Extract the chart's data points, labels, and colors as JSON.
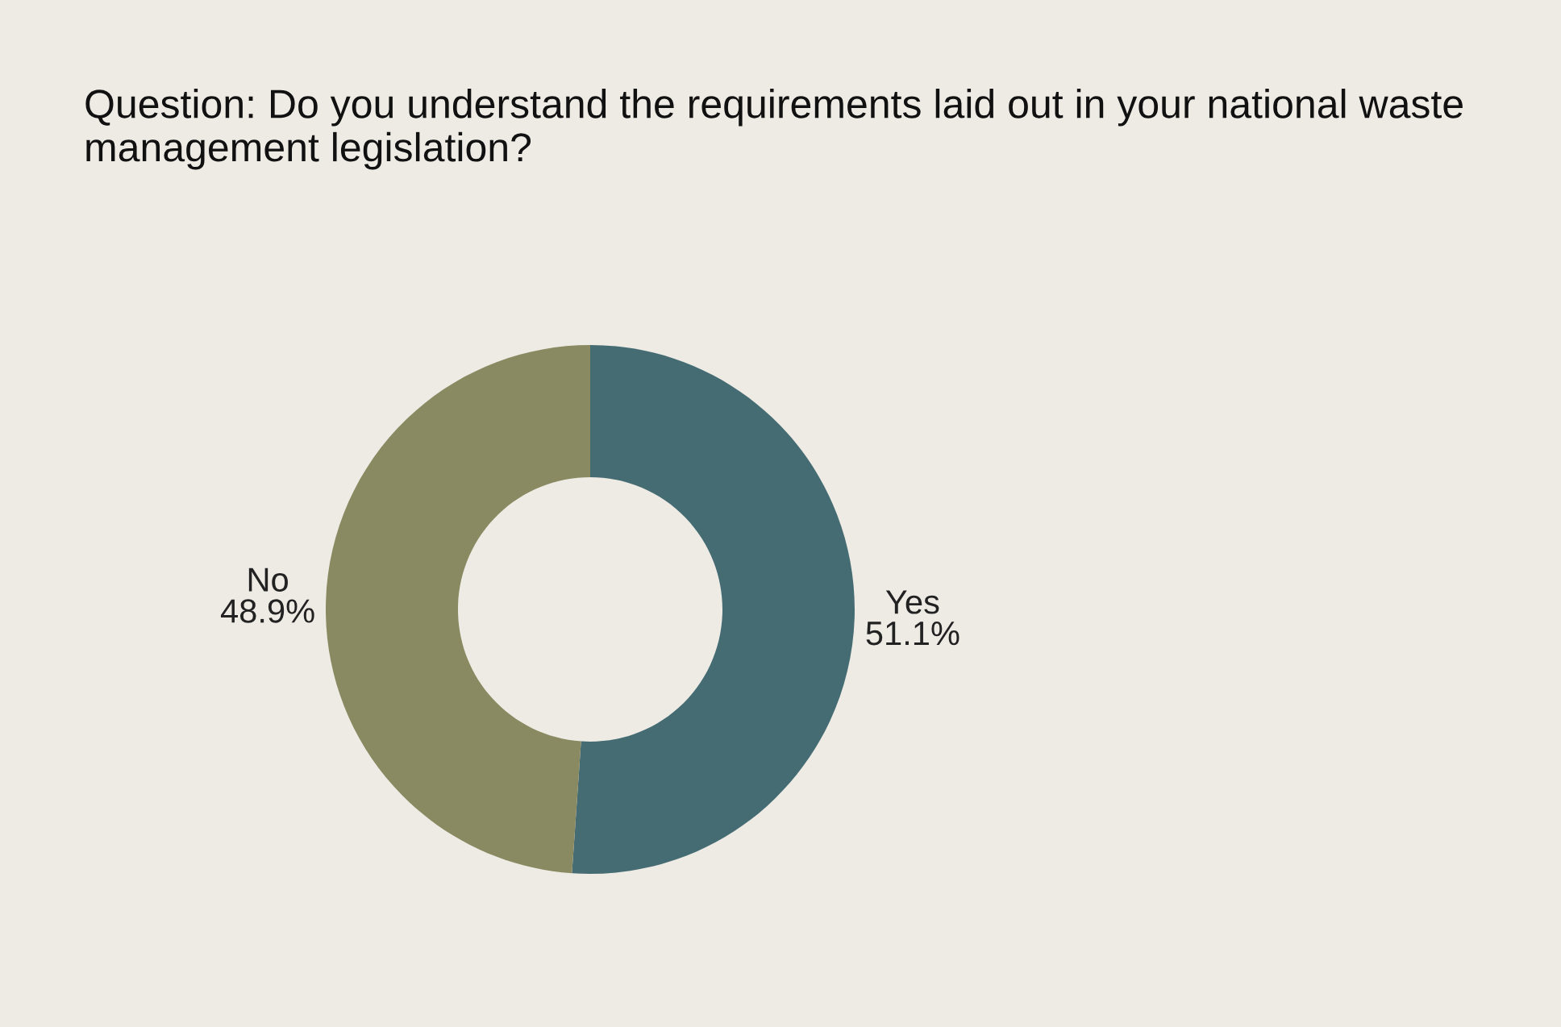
{
  "chart_data": {
    "type": "donut",
    "title": "Question: Do you understand the requirements laid out in your national waste management legislation?",
    "categories": [
      "Yes",
      "No"
    ],
    "values": [
      51.1,
      48.9
    ],
    "value_labels": [
      "51.1%",
      "48.9%"
    ],
    "colors": [
      "#466c73",
      "#8a8a62"
    ],
    "legend": false
  }
}
